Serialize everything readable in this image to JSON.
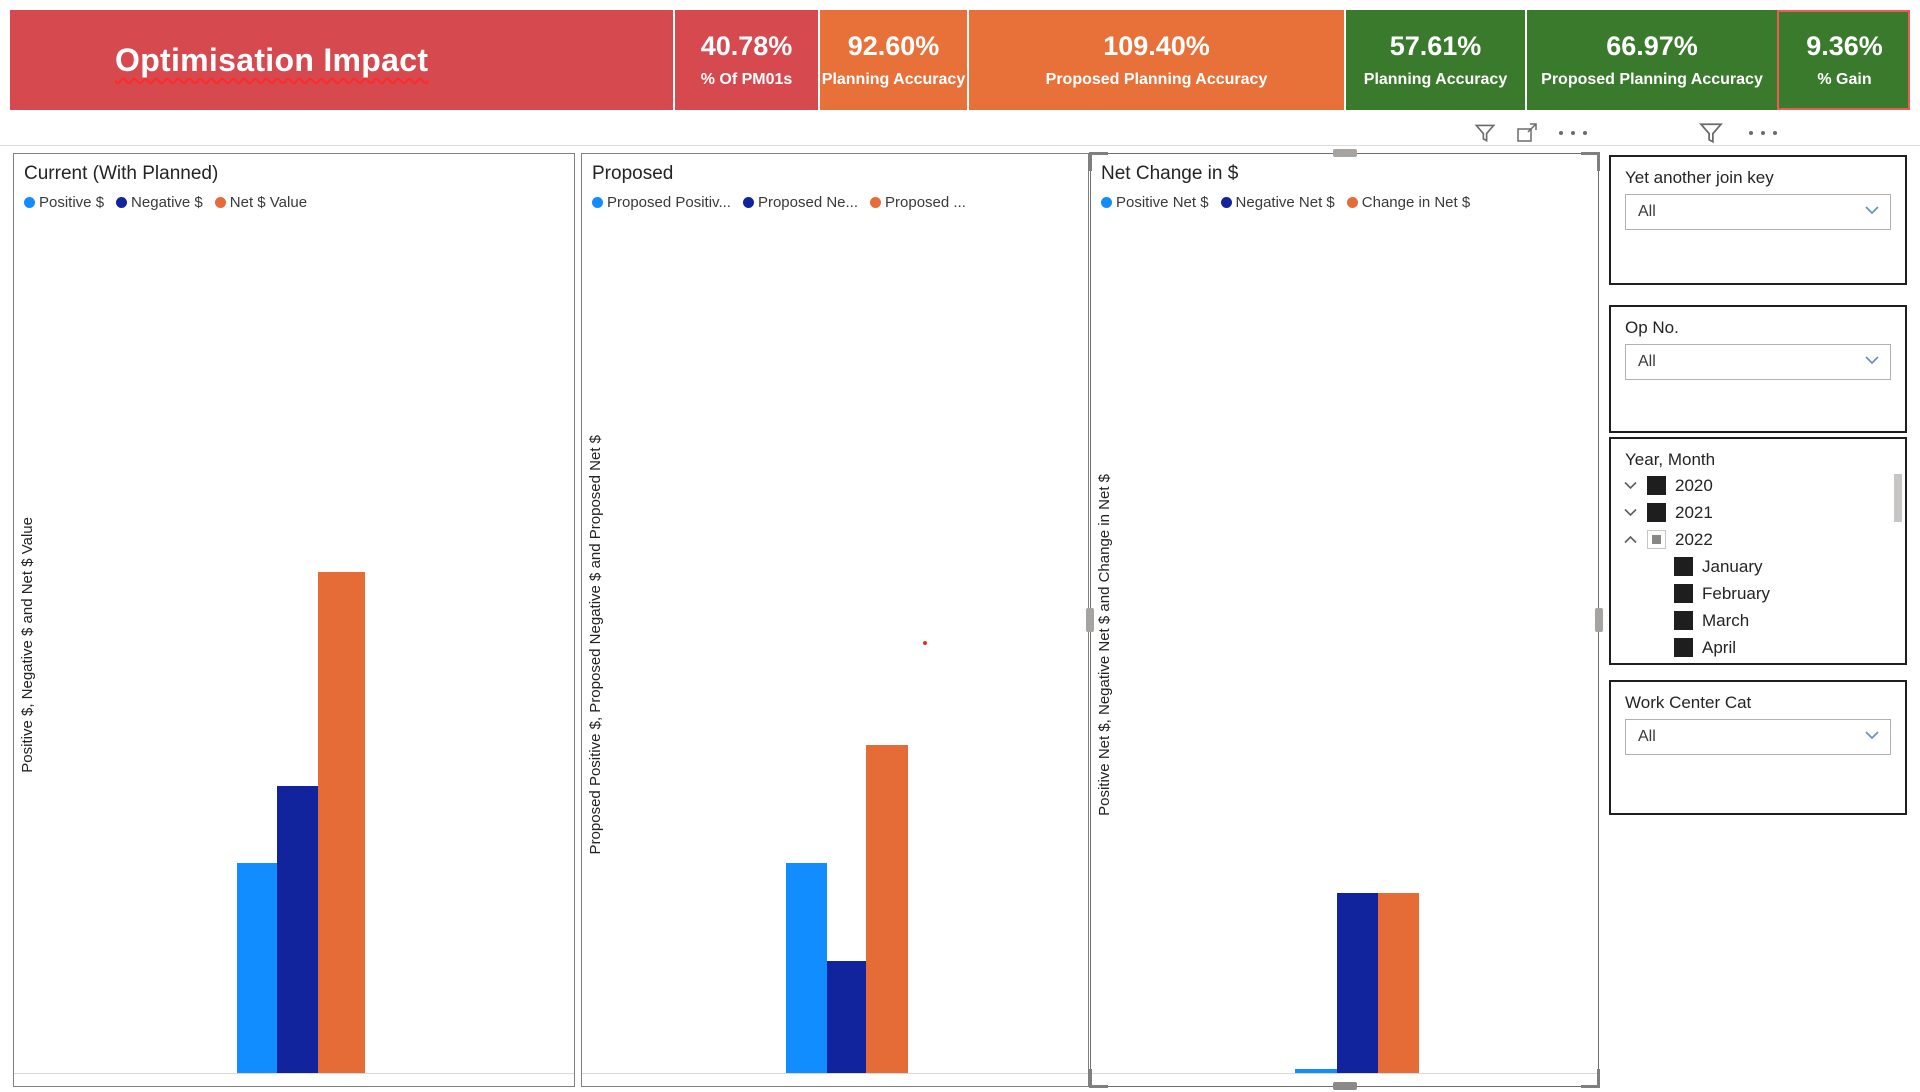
{
  "header": {
    "title": "Optimisation Impact",
    "kpis": [
      {
        "value": "40.78%",
        "label": "% Of PM01s",
        "color": "#D6494F"
      },
      {
        "value": "92.60%",
        "label": "Planning Accuracy",
        "color": "#E8713A"
      },
      {
        "value": "109.40%",
        "label": "Proposed Planning Accuracy",
        "color": "#E8713A"
      },
      {
        "value": "57.61%",
        "label": "Planning Accuracy",
        "color": "#3A7A2C"
      },
      {
        "value": "66.97%",
        "label": "Proposed Planning Accuracy",
        "color": "#3A7A2C"
      },
      {
        "value": "9.36%",
        "label": "% Gain",
        "color": "#3A7A2C",
        "selected": true
      }
    ]
  },
  "colors": {
    "banner_red": "#D6494F",
    "card_orange": "#E8713A",
    "card_green": "#3A7A2C",
    "positive_blue": "#118DFF",
    "negative_navy": "#12239E",
    "net_orange": "#E66C37",
    "selected_card_border": "#EF5B50",
    "stray_dot_red": "#E0301E"
  },
  "charts": [
    {
      "title": "Current (With Planned)",
      "y_axis_label": "Positive $, Negative $ and Net $ Value",
      "legend": [
        {
          "label": "Positive $"
        },
        {
          "label": "Negative $"
        },
        {
          "label": "Net $ Value"
        }
      ]
    },
    {
      "title": "Proposed",
      "y_axis_label": "Proposed Positive $, Proposed Negative $ and Proposed Net $",
      "legend": [
        {
          "label": "Proposed Positiv..."
        },
        {
          "label": "Proposed Ne..."
        },
        {
          "label": "Proposed ..."
        }
      ]
    },
    {
      "title": "Net Change in $",
      "y_axis_label": "Positive Net $, Negative Net $ and Change in Net $",
      "legend": [
        {
          "label": "Positive Net $"
        },
        {
          "label": "Negative Net $"
        },
        {
          "label": "Change in Net $"
        }
      ]
    }
  ],
  "chart_data": [
    {
      "type": "bar",
      "title": "Current (With Planned)",
      "ylabel": "Positive $, Negative $ and Net $ Value",
      "categories": [
        ""
      ],
      "axis_tick_labels_shown": false,
      "series": [
        {
          "name": "Positive $",
          "color": "#118DFF",
          "relative_height": 0.245
        },
        {
          "name": "Negative $",
          "color": "#12239E",
          "relative_height": 0.335
        },
        {
          "name": "Net $ Value",
          "color": "#E66C37",
          "relative_height": 0.585
        }
      ]
    },
    {
      "type": "bar",
      "title": "Proposed",
      "ylabel": "Proposed Positive $, Proposed Negative $ and Proposed Net $",
      "categories": [
        ""
      ],
      "axis_tick_labels_shown": false,
      "series": [
        {
          "name": "Proposed Positive $",
          "color": "#118DFF",
          "relative_height": 0.245
        },
        {
          "name": "Proposed Negative $",
          "color": "#12239E",
          "relative_height": 0.131
        },
        {
          "name": "Proposed Net $",
          "color": "#E66C37",
          "relative_height": 0.383
        }
      ],
      "annotations": [
        {
          "type": "stray-dot",
          "color": "#E0301E"
        }
      ]
    },
    {
      "type": "bar",
      "title": "Net Change in $",
      "ylabel": "Positive Net $, Negative Net $ and Change in Net $",
      "categories": [
        ""
      ],
      "axis_tick_labels_shown": false,
      "series": [
        {
          "name": "Positive Net $",
          "color": "#118DFF",
          "relative_height": 0.005
        },
        {
          "name": "Negative Net $",
          "color": "#12239E",
          "relative_height": 0.21
        },
        {
          "name": "Change in Net $",
          "color": "#E66C37",
          "relative_height": 0.21
        }
      ]
    }
  ],
  "sidebar": {
    "slicers": [
      {
        "title": "Yet another join key",
        "value": "All"
      },
      {
        "title": "Op No.",
        "value": "All"
      },
      {
        "title": "Year, Month"
      },
      {
        "title": "Work Center Cat",
        "value": "All"
      }
    ],
    "year_month": {
      "years": [
        {
          "label": "2020",
          "state": "checked",
          "expand": "collapsed"
        },
        {
          "label": "2021",
          "state": "checked",
          "expand": "collapsed"
        },
        {
          "label": "2022",
          "state": "partial",
          "expand": "expanded"
        }
      ],
      "months": [
        {
          "label": "January",
          "state": "checked"
        },
        {
          "label": "February",
          "state": "checked"
        },
        {
          "label": "March",
          "state": "checked"
        },
        {
          "label": "April",
          "state": "checked",
          "clipped": true
        }
      ]
    }
  }
}
